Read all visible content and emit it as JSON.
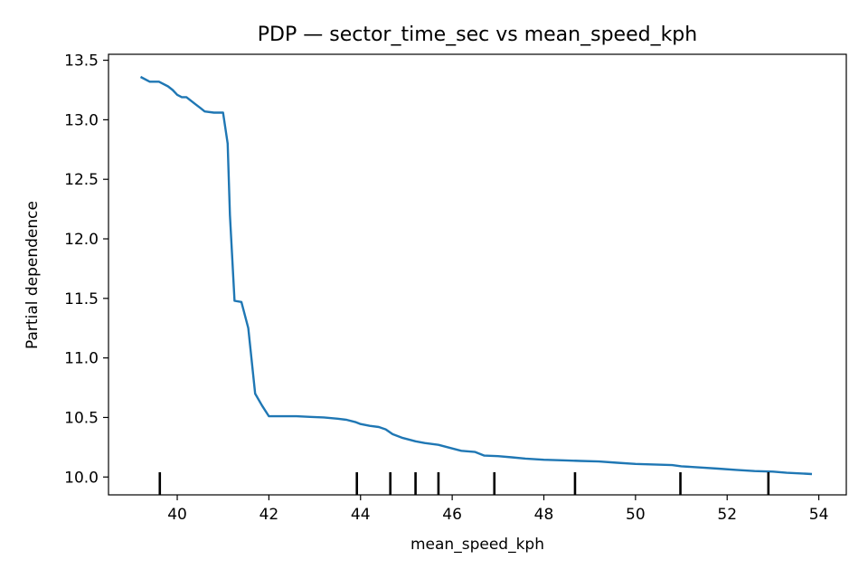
{
  "chart_data": {
    "type": "line",
    "title": "PDP — sector_time_sec vs mean_speed_kph",
    "xlabel": "mean_speed_kph",
    "ylabel": "Partial dependence",
    "xlim": [
      38.5,
      54.6
    ],
    "ylim": [
      9.85,
      13.55
    ],
    "xticks": [
      "40",
      "42",
      "44",
      "46",
      "48",
      "50",
      "52",
      "54"
    ],
    "yticks": [
      "10.0",
      "10.5",
      "11.0",
      "11.5",
      "12.0",
      "12.5",
      "13.0",
      "13.5"
    ],
    "grid": false,
    "line_color": "#1f77b4",
    "rug_color": "#000000",
    "series": [
      {
        "x": [
          39.2,
          39.4,
          39.6,
          39.8,
          39.9,
          40.0,
          40.1,
          40.2,
          40.4,
          40.5,
          40.6,
          40.8,
          41.0,
          41.1,
          41.15,
          41.25,
          41.4,
          41.55,
          41.7,
          41.85,
          42.0,
          42.3,
          42.6,
          42.9,
          43.2,
          43.5,
          43.7,
          43.9,
          44.0,
          44.2,
          44.4,
          44.55,
          44.7,
          44.9,
          45.2,
          45.4,
          45.7,
          46.0,
          46.2,
          46.5,
          46.7,
          47.0,
          47.3,
          47.6,
          48.0,
          48.4,
          48.8,
          49.2,
          49.6,
          50.0,
          50.4,
          50.8,
          51.0,
          51.4,
          51.8,
          52.2,
          52.6,
          53.0,
          53.3,
          53.6,
          53.85
        ],
        "y": [
          13.36,
          13.32,
          13.32,
          13.28,
          13.25,
          13.21,
          13.19,
          13.19,
          13.13,
          13.1,
          13.07,
          13.06,
          13.06,
          12.8,
          12.2,
          11.48,
          11.47,
          11.25,
          10.7,
          10.6,
          10.51,
          10.51,
          10.51,
          10.505,
          10.5,
          10.49,
          10.48,
          10.46,
          10.445,
          10.43,
          10.42,
          10.4,
          10.36,
          10.33,
          10.3,
          10.285,
          10.27,
          10.24,
          10.22,
          10.21,
          10.18,
          10.175,
          10.165,
          10.155,
          10.145,
          10.14,
          10.135,
          10.13,
          10.12,
          10.11,
          10.105,
          10.1,
          10.09,
          10.08,
          10.07,
          10.06,
          10.05,
          10.045,
          10.035,
          10.03,
          10.025
        ]
      }
    ],
    "rug_x": [
      39.62,
      43.92,
      44.65,
      45.2,
      45.7,
      46.92,
      48.68,
      50.98,
      52.9
    ]
  }
}
